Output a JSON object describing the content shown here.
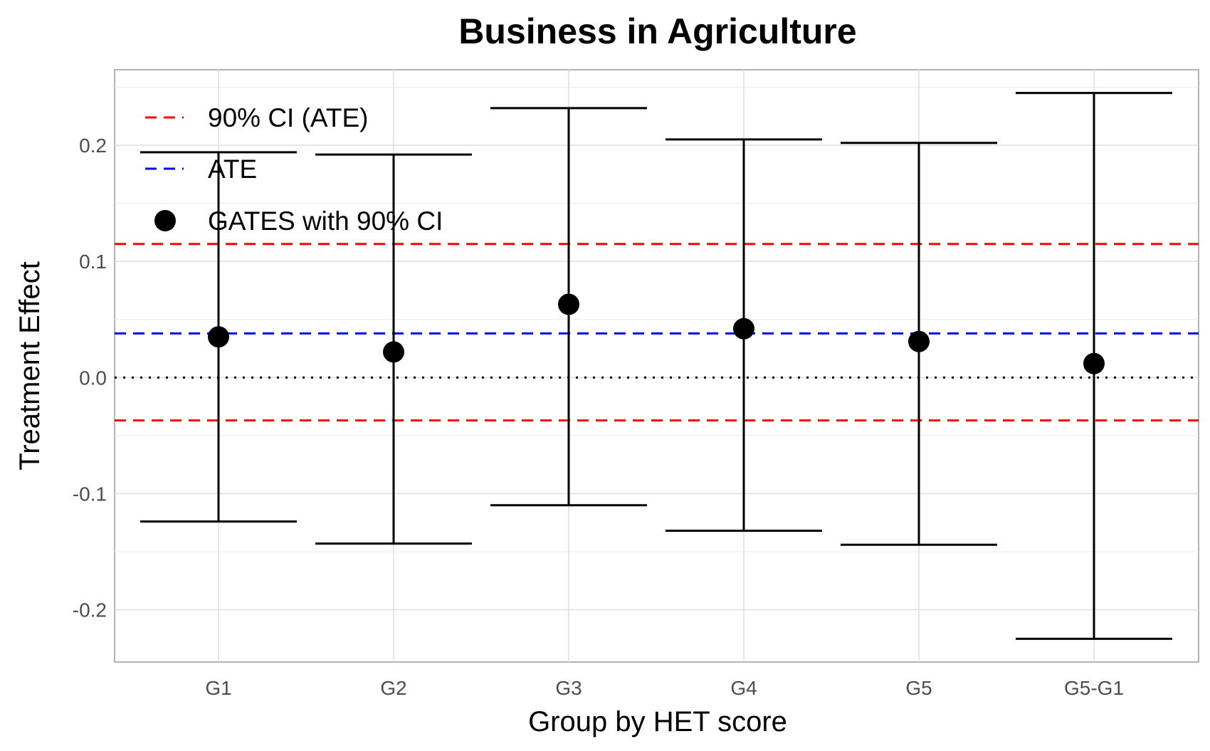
{
  "chart_data": {
    "type": "errorbar",
    "title": "Business in Agriculture",
    "xlabel": "Group by HET score",
    "ylabel": "Treatment Effect",
    "ylim": [
      -0.245,
      0.265
    ],
    "yticks": [
      -0.2,
      -0.1,
      0.0,
      0.1,
      0.2
    ],
    "ytick_labels": [
      "-0.2",
      "-0.1",
      "0.0",
      "0.1",
      "0.2"
    ],
    "grid": true,
    "legend_position": "top-left",
    "categories": [
      "G1",
      "G2",
      "G3",
      "G4",
      "G5",
      "G5-G1"
    ],
    "series": [
      {
        "name": "GATES with 90% CI",
        "values": [
          0.035,
          0.022,
          0.063,
          0.042,
          0.031,
          0.012
        ],
        "lower": [
          -0.124,
          -0.143,
          -0.11,
          -0.132,
          -0.144,
          -0.225
        ],
        "upper": [
          0.194,
          0.192,
          0.232,
          0.205,
          0.202,
          0.245
        ],
        "color": "#000000"
      }
    ],
    "reference_lines": [
      {
        "name": "ATE",
        "value": 0.038,
        "color": "#0000ff",
        "style": "dashed"
      },
      {
        "name": "90% CI (ATE)",
        "value": 0.115,
        "color": "#ff0000",
        "style": "dashed"
      },
      {
        "name": "90% CI (ATE)",
        "value": -0.037,
        "color": "#ff0000",
        "style": "dashed"
      },
      {
        "name": "",
        "value": 0.0,
        "color": "#000000",
        "style": "dotted"
      }
    ],
    "legend": [
      {
        "label": "90% CI (ATE)",
        "kind": "dashed-line",
        "color": "#ff0000"
      },
      {
        "label": "ATE",
        "kind": "dashed-line",
        "color": "#0000ff"
      },
      {
        "label": "GATES with 90% CI",
        "kind": "point",
        "color": "#000000"
      }
    ]
  }
}
